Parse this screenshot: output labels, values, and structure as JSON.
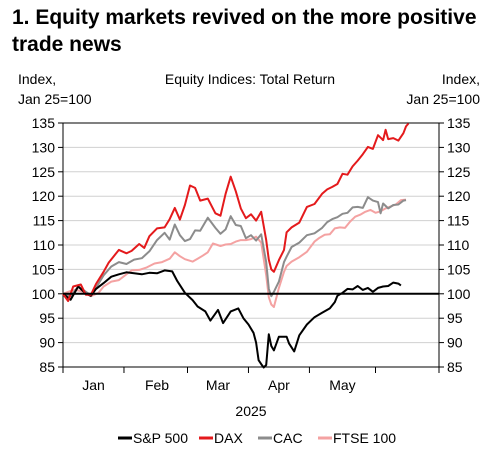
{
  "chart_data": {
    "type": "line",
    "title": "1. Equity markets revived on the more positive trade news",
    "subtitle": "Equity Indices: Total Return",
    "ylabel_left": [
      "Index,",
      "Jan 25=100"
    ],
    "ylabel_right": [
      "Index,",
      "Jan 25=100"
    ],
    "xlabel": "2025",
    "ylim": [
      85,
      135
    ],
    "yticks": [
      85,
      90,
      95,
      100,
      105,
      110,
      115,
      120,
      125,
      130,
      135
    ],
    "xlim": [
      0,
      148
    ],
    "xtick_labels": [
      {
        "label": "Jan",
        "x": 12
      },
      {
        "label": "Feb",
        "x": 37
      },
      {
        "label": "Mar",
        "x": 61
      },
      {
        "label": "Apr",
        "x": 85
      },
      {
        "label": "May",
        "x": 110
      }
    ],
    "xtick_marks": [
      0,
      24,
      49,
      73,
      97,
      123,
      148
    ],
    "reference_line": 100,
    "grid": "horizontal",
    "legend": "bottom",
    "series": [
      {
        "name": "S&P 500",
        "color": "#000000",
        "points": [
          [
            0,
            100
          ],
          [
            3,
            98.8
          ],
          [
            6,
            101.5
          ],
          [
            9,
            100
          ],
          [
            11,
            99.6
          ],
          [
            13,
            101
          ],
          [
            16,
            102.2
          ],
          [
            19,
            103.5
          ],
          [
            22,
            104
          ],
          [
            25,
            104.4
          ],
          [
            28,
            104.2
          ],
          [
            31,
            104
          ],
          [
            34,
            104.3
          ],
          [
            37,
            104.2
          ],
          [
            40,
            104.8
          ],
          [
            43,
            104.6
          ],
          [
            45,
            102.6
          ],
          [
            48,
            100.2
          ],
          [
            51,
            98.7
          ],
          [
            53,
            97.4
          ],
          [
            56,
            96.4
          ],
          [
            58,
            94.5
          ],
          [
            61,
            96.7
          ],
          [
            63,
            94
          ],
          [
            66,
            96.4
          ],
          [
            69,
            97
          ],
          [
            71,
            95
          ],
          [
            73,
            93.7
          ],
          [
            75,
            92
          ],
          [
            76,
            90
          ],
          [
            77,
            86.4
          ],
          [
            78,
            85.6
          ],
          [
            79,
            84.9
          ],
          [
            80,
            85.4
          ],
          [
            81,
            91.7
          ],
          [
            82,
            89.3
          ],
          [
            83,
            88.4
          ],
          [
            85,
            91.2
          ],
          [
            88,
            91.2
          ],
          [
            89,
            89.8
          ],
          [
            91,
            88.2
          ],
          [
            93,
            91.5
          ],
          [
            96,
            93.7
          ],
          [
            99,
            95.2
          ],
          [
            102,
            96.1
          ],
          [
            105,
            97
          ],
          [
            107,
            98.3
          ],
          [
            108,
            99.6
          ],
          [
            110,
            100.2
          ],
          [
            112,
            101
          ],
          [
            114,
            100.9
          ],
          [
            116,
            101.6
          ],
          [
            118,
            100.8
          ],
          [
            120,
            101.2
          ],
          [
            122,
            100.4
          ],
          [
            124,
            101.2
          ],
          [
            126,
            101.5
          ],
          [
            128,
            101.6
          ],
          [
            130,
            102.3
          ],
          [
            132,
            102.1
          ],
          [
            133,
            101.7
          ]
        ]
      },
      {
        "name": "DAX",
        "color": "#e41a1c",
        "points": [
          [
            0,
            100
          ],
          [
            2,
            98.5
          ],
          [
            4,
            101.5
          ],
          [
            7,
            101.9
          ],
          [
            9,
            99.8
          ],
          [
            11,
            99.8
          ],
          [
            13,
            102
          ],
          [
            16,
            104.5
          ],
          [
            18,
            106.4
          ],
          [
            20,
            107.7
          ],
          [
            22,
            109
          ],
          [
            25,
            108.3
          ],
          [
            27,
            108.8
          ],
          [
            30,
            110.2
          ],
          [
            32,
            109.4
          ],
          [
            34,
            111.8
          ],
          [
            37,
            113.4
          ],
          [
            40,
            113.6
          ],
          [
            42,
            115.3
          ],
          [
            44,
            117.6
          ],
          [
            46,
            115.2
          ],
          [
            48,
            118.2
          ],
          [
            50,
            122.2
          ],
          [
            52,
            121.7
          ],
          [
            54,
            119.1
          ],
          [
            57,
            119.5
          ],
          [
            60,
            116.5
          ],
          [
            62,
            116
          ],
          [
            64,
            120.5
          ],
          [
            66,
            124
          ],
          [
            68,
            121
          ],
          [
            70,
            117.5
          ],
          [
            72,
            115.5
          ],
          [
            74,
            116.3
          ],
          [
            76,
            115
          ],
          [
            78,
            116.8
          ],
          [
            80,
            111
          ],
          [
            81,
            107
          ],
          [
            82,
            105
          ],
          [
            83,
            104.5
          ],
          [
            85,
            106.9
          ],
          [
            87,
            109
          ],
          [
            88,
            112.6
          ],
          [
            90,
            113.6
          ],
          [
            93,
            114.6
          ],
          [
            96,
            117.8
          ],
          [
            99,
            118.4
          ],
          [
            102,
            120.5
          ],
          [
            104,
            121.4
          ],
          [
            106,
            121.9
          ],
          [
            108,
            122.5
          ],
          [
            110,
            124.6
          ],
          [
            112,
            124.4
          ],
          [
            114,
            126.1
          ],
          [
            116,
            127.3
          ],
          [
            118,
            128.6
          ],
          [
            120,
            130.1
          ],
          [
            122,
            129.7
          ],
          [
            124,
            132.5
          ],
          [
            126,
            131.5
          ],
          [
            127,
            133.6
          ],
          [
            128,
            131.7
          ],
          [
            130,
            131.9
          ],
          [
            132,
            131.4
          ],
          [
            134,
            132.9
          ],
          [
            135,
            134.3
          ],
          [
            136,
            134.9
          ]
        ]
      },
      {
        "name": "CAC",
        "color": "#8c8c8c",
        "points": [
          [
            0,
            100
          ],
          [
            3,
            99.5
          ],
          [
            6,
            101.5
          ],
          [
            9,
            100.4
          ],
          [
            11,
            99.7
          ],
          [
            13,
            101.2
          ],
          [
            16,
            103.8
          ],
          [
            19,
            105.6
          ],
          [
            22,
            106.5
          ],
          [
            25,
            106.1
          ],
          [
            28,
            107
          ],
          [
            31,
            107.3
          ],
          [
            34,
            108.7
          ],
          [
            37,
            111
          ],
          [
            40,
            112.5
          ],
          [
            42,
            111.1
          ],
          [
            44,
            114.2
          ],
          [
            46,
            112
          ],
          [
            48,
            110.8
          ],
          [
            50,
            111.2
          ],
          [
            52,
            113
          ],
          [
            54,
            112.9
          ],
          [
            57,
            115.6
          ],
          [
            60,
            113.5
          ],
          [
            62,
            112.3
          ],
          [
            64,
            113.2
          ],
          [
            66,
            115.9
          ],
          [
            68,
            114.1
          ],
          [
            70,
            113.9
          ],
          [
            72,
            111.4
          ],
          [
            74,
            112
          ],
          [
            76,
            110.9
          ],
          [
            78,
            112.2
          ],
          [
            80,
            106.5
          ],
          [
            81,
            101
          ],
          [
            82,
            99.5
          ],
          [
            83,
            100.4
          ],
          [
            85,
            102.5
          ],
          [
            87,
            106.5
          ],
          [
            88,
            107.6
          ],
          [
            90,
            109.6
          ],
          [
            93,
            110.5
          ],
          [
            96,
            112
          ],
          [
            99,
            112.4
          ],
          [
            102,
            113.5
          ],
          [
            104,
            114.7
          ],
          [
            106,
            115.3
          ],
          [
            108,
            115.7
          ],
          [
            110,
            116.4
          ],
          [
            112,
            116.6
          ],
          [
            114,
            117.7
          ],
          [
            116,
            117.8
          ],
          [
            118,
            117.6
          ],
          [
            120,
            119.8
          ],
          [
            122,
            119.1
          ],
          [
            124,
            118.8
          ],
          [
            125,
            116.5
          ],
          [
            126,
            118.5
          ],
          [
            128,
            117.5
          ],
          [
            130,
            118.2
          ],
          [
            132,
            118.3
          ],
          [
            134,
            119.1
          ],
          [
            135,
            119.2
          ]
        ]
      },
      {
        "name": "FTSE 100",
        "color": "#f4a2a2",
        "points": [
          [
            0,
            100
          ],
          [
            3,
            100.6
          ],
          [
            5,
            100.8
          ],
          [
            8,
            100.4
          ],
          [
            11,
            99.5
          ],
          [
            14,
            100.2
          ],
          [
            16,
            101.5
          ],
          [
            19,
            102.5
          ],
          [
            22,
            102.8
          ],
          [
            24,
            103.6
          ],
          [
            27,
            104.8
          ],
          [
            30,
            104.9
          ],
          [
            33,
            105.4
          ],
          [
            36,
            106.2
          ],
          [
            39,
            106.5
          ],
          [
            42,
            107.2
          ],
          [
            44,
            108.5
          ],
          [
            46,
            107.7
          ],
          [
            48,
            107.1
          ],
          [
            51,
            106.6
          ],
          [
            53,
            107.2
          ],
          [
            55,
            107.8
          ],
          [
            57,
            108.5
          ],
          [
            59,
            110.3
          ],
          [
            62,
            109.8
          ],
          [
            64,
            110.1
          ],
          [
            66,
            110.2
          ],
          [
            68,
            110.7
          ],
          [
            70,
            111
          ],
          [
            72,
            111
          ],
          [
            74,
            111.2
          ],
          [
            76,
            111.7
          ],
          [
            78,
            110.5
          ],
          [
            80,
            103.8
          ],
          [
            81,
            99.3
          ],
          [
            82,
            97.8
          ],
          [
            83,
            97.3
          ],
          [
            85,
            101.2
          ],
          [
            87,
            104.5
          ],
          [
            88,
            105.7
          ],
          [
            90,
            106.6
          ],
          [
            93,
            107.5
          ],
          [
            96,
            108.6
          ],
          [
            99,
            110.7
          ],
          [
            101,
            111.5
          ],
          [
            103,
            112.1
          ],
          [
            105,
            112.2
          ],
          [
            107,
            113.4
          ],
          [
            109,
            113.6
          ],
          [
            111,
            113.5
          ],
          [
            113,
            114.8
          ],
          [
            115,
            115.8
          ],
          [
            117,
            116.2
          ],
          [
            119,
            116.8
          ],
          [
            121,
            117.2
          ],
          [
            123,
            116.6
          ],
          [
            125,
            116.9
          ],
          [
            127,
            117.5
          ],
          [
            129,
            117.9
          ],
          [
            131,
            118.3
          ],
          [
            133,
            119.2
          ],
          [
            135,
            119.3
          ]
        ]
      }
    ]
  }
}
